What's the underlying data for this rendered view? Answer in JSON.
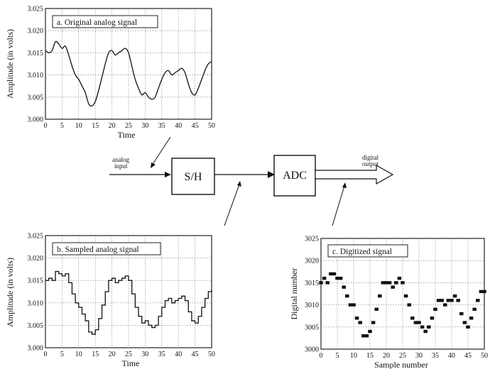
{
  "panel_a": {
    "label": "a. Original analog signal",
    "ylabel": "Amplitude (in volts)",
    "xlabel": "Time",
    "y_ticks": [
      "3.025",
      "3.020",
      "3.015",
      "3.010",
      "3.005",
      "3.000"
    ],
    "x_ticks": [
      "0",
      "5",
      "10",
      "15",
      "20",
      "25",
      "30",
      "35",
      "40",
      "45",
      "50"
    ]
  },
  "panel_b": {
    "label": "b. Sampled analog signal",
    "ylabel": "Amplitude (in volts)",
    "xlabel": "Time",
    "y_ticks": [
      "3.025",
      "3.020",
      "3.015",
      "3.010",
      "3.005",
      "3.000"
    ],
    "x_ticks": [
      "0",
      "5",
      "10",
      "15",
      "20",
      "25",
      "30",
      "35",
      "40",
      "45",
      "50"
    ]
  },
  "panel_c": {
    "label": "c. Digitized signal",
    "ylabel": "Digital number",
    "xlabel": "Sample number",
    "y_ticks": [
      "3025",
      "3020",
      "3015",
      "3010",
      "3005",
      "3000"
    ],
    "x_ticks": [
      "0",
      "5",
      "10",
      "15",
      "20",
      "25",
      "30",
      "35",
      "40",
      "45",
      "50"
    ]
  },
  "block_diagram": {
    "input_label_1": "analog",
    "input_label_2": "input",
    "sh_label": "S/H",
    "adc_label": "ADC",
    "output_label_1": "digital",
    "output_label_2": "output"
  },
  "chart_data": [
    {
      "type": "line",
      "title": "a. Original analog signal",
      "xlabel": "Time",
      "ylabel": "Amplitude (in volts)",
      "xlim": [
        0,
        50
      ],
      "ylim": [
        3.0,
        3.025
      ],
      "grid": true,
      "x": [
        0,
        1,
        2,
        3,
        4,
        5,
        6,
        7,
        8,
        9,
        10,
        11,
        12,
        13,
        14,
        15,
        16,
        17,
        18,
        19,
        20,
        21,
        22,
        23,
        24,
        25,
        26,
        27,
        28,
        29,
        30,
        31,
        32,
        33,
        34,
        35,
        36,
        37,
        38,
        39,
        40,
        41,
        42,
        43,
        44,
        45,
        46,
        47,
        48,
        49,
        50
      ],
      "y": [
        3.0155,
        3.015,
        3.0155,
        3.0175,
        3.017,
        3.016,
        3.0165,
        3.0145,
        3.012,
        3.01,
        3.009,
        3.0075,
        3.006,
        3.0035,
        3.003,
        3.004,
        3.0065,
        3.0095,
        3.0125,
        3.015,
        3.0155,
        3.0145,
        3.015,
        3.0155,
        3.016,
        3.015,
        3.012,
        3.009,
        3.007,
        3.0055,
        3.006,
        3.005,
        3.0045,
        3.005,
        3.007,
        3.009,
        3.0105,
        3.011,
        3.01,
        3.0105,
        3.011,
        3.0115,
        3.0105,
        3.008,
        3.006,
        3.0055,
        3.007,
        3.009,
        3.011,
        3.0125,
        3.013
      ]
    },
    {
      "type": "line",
      "title": "b. Sampled analog signal",
      "xlabel": "Time",
      "ylabel": "Amplitude (in volts)",
      "xlim": [
        0,
        50
      ],
      "ylim": [
        3.0,
        3.025
      ],
      "grid": true,
      "step": true,
      "x": [
        0,
        1,
        2,
        3,
        4,
        5,
        6,
        7,
        8,
        9,
        10,
        11,
        12,
        13,
        14,
        15,
        16,
        17,
        18,
        19,
        20,
        21,
        22,
        23,
        24,
        25,
        26,
        27,
        28,
        29,
        30,
        31,
        32,
        33,
        34,
        35,
        36,
        37,
        38,
        39,
        40,
        41,
        42,
        43,
        44,
        45,
        46,
        47,
        48,
        49,
        50
      ],
      "y": [
        3.015,
        3.0155,
        3.015,
        3.017,
        3.0165,
        3.016,
        3.0165,
        3.0145,
        3.012,
        3.01,
        3.009,
        3.0075,
        3.006,
        3.0035,
        3.003,
        3.004,
        3.0065,
        3.0095,
        3.0125,
        3.015,
        3.0155,
        3.0145,
        3.015,
        3.0155,
        3.016,
        3.015,
        3.012,
        3.009,
        3.007,
        3.0055,
        3.006,
        3.005,
        3.0045,
        3.005,
        3.007,
        3.009,
        3.0105,
        3.011,
        3.01,
        3.0105,
        3.011,
        3.0115,
        3.0105,
        3.008,
        3.006,
        3.0055,
        3.007,
        3.009,
        3.011,
        3.0125,
        3.013
      ]
    },
    {
      "type": "scatter",
      "title": "c. Digitized signal",
      "xlabel": "Sample number",
      "ylabel": "Digital number",
      "xlim": [
        0,
        50
      ],
      "ylim": [
        3000,
        3025
      ],
      "grid": true,
      "x": [
        0,
        1,
        2,
        3,
        4,
        5,
        6,
        7,
        8,
        9,
        10,
        11,
        12,
        13,
        14,
        15,
        16,
        17,
        18,
        19,
        20,
        21,
        22,
        23,
        24,
        25,
        26,
        27,
        28,
        29,
        30,
        31,
        32,
        33,
        34,
        35,
        36,
        37,
        38,
        39,
        40,
        41,
        42,
        43,
        44,
        45,
        46,
        47,
        48,
        49,
        50
      ],
      "y": [
        3015,
        3016,
        3015,
        3017,
        3017,
        3016,
        3016,
        3014,
        3012,
        3010,
        3010,
        3007,
        3006,
        3003,
        3003,
        3004,
        3006,
        3009,
        3012,
        3015,
        3015,
        3015,
        3014,
        3015,
        3016,
        3015,
        3012,
        3010,
        3007,
        3006,
        3006,
        3005,
        3004,
        3005,
        3007,
        3009,
        3011,
        3011,
        3010,
        3011,
        3011,
        3012,
        3011,
        3008,
        3006,
        3005,
        3007,
        3009,
        3011,
        3013,
        3013
      ]
    }
  ]
}
